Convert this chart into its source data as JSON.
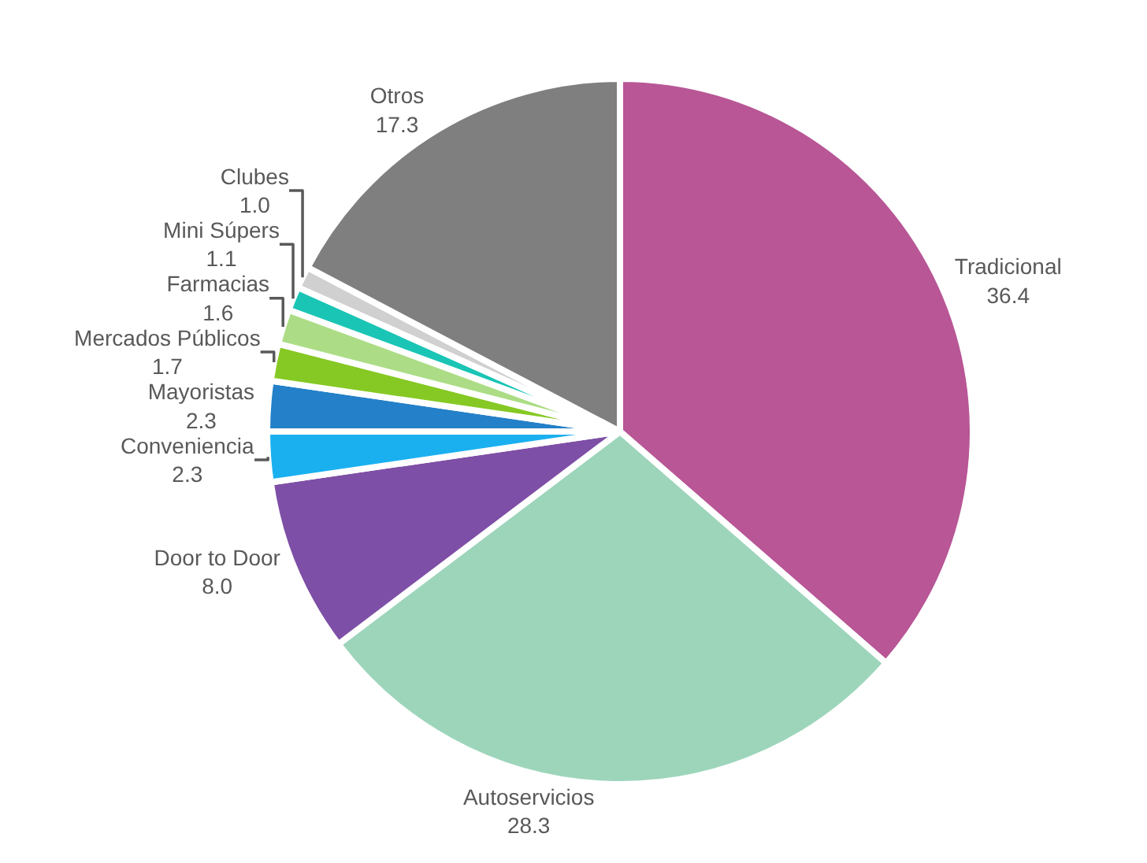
{
  "chart_data": {
    "type": "pie",
    "categories": [
      "Tradicional",
      "Autoservicios",
      "Door to Door",
      "Conveniencia",
      "Mayoristas",
      "Mercados Públicos",
      "Farmacias",
      "Mini Súpers",
      "Clubes",
      "Otros"
    ],
    "values": [
      36.4,
      28.3,
      8.0,
      2.3,
      2.3,
      1.7,
      1.6,
      1.1,
      1.0,
      17.3
    ],
    "value_labels": [
      "36.4",
      "28.3",
      "8.0",
      "2.3",
      "2.3",
      "1.7",
      "1.6",
      "1.1",
      "1.0",
      "17.3"
    ],
    "colors": [
      "#b85696",
      "#9dd5bb",
      "#7e4fa6",
      "#1ab0f0",
      "#2480c8",
      "#86c924",
      "#acdd86",
      "#1ac5b5",
      "#d0d0d0",
      "#7f7f7f"
    ],
    "legend": false
  }
}
